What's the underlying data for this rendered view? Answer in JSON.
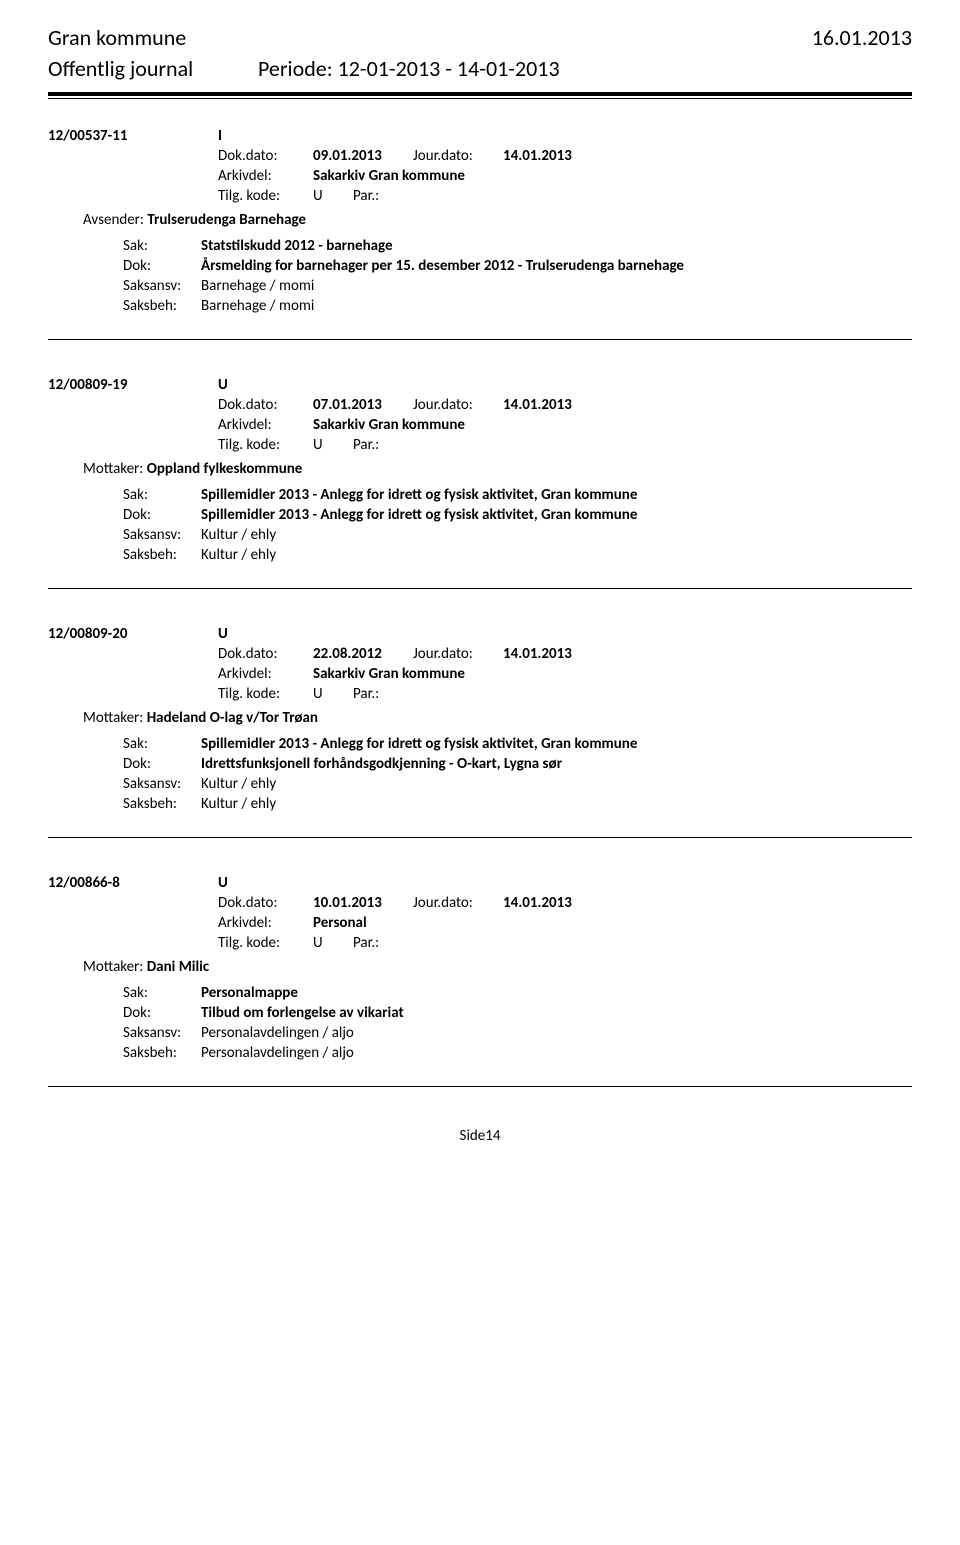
{
  "header": {
    "org": "Gran kommune",
    "date": "16.01.2013",
    "journal_label": "Offentlig journal",
    "period_label": "Periode:",
    "period_value": "12-01-2013 - 14-01-2013"
  },
  "labels": {
    "dokdato": "Dok.dato:",
    "jourdato": "Jour.dato:",
    "arkivdel": "Arkivdel:",
    "tilgkode": "Tilg. kode:",
    "par": "Par.:",
    "avsender": "Avsender:",
    "mottaker": "Mottaker:",
    "sak": "Sak:",
    "dok": "Dok:",
    "saksansv": "Saksansv:",
    "saksbeh": "Saksbeh:"
  },
  "entries": [
    {
      "id": "12/00537-11",
      "type": "I",
      "dokdato": "09.01.2013",
      "jourdato": "14.01.2013",
      "arkivdel": "Sakarkiv Gran kommune",
      "tilgkode": "U",
      "party_label": "Avsender:",
      "party": "Trulserudenga Barnehage",
      "sak": "Statstilskudd 2012 - barnehage",
      "dok": "Årsmelding for barnehager per 15. desember 2012 - Trulserudenga barnehage",
      "saksansv": "Barnehage / momi",
      "saksbeh": "Barnehage / momi"
    },
    {
      "id": "12/00809-19",
      "type": "U",
      "dokdato": "07.01.2013",
      "jourdato": "14.01.2013",
      "arkivdel": "Sakarkiv Gran kommune",
      "tilgkode": "U",
      "party_label": "Mottaker:",
      "party": "Oppland fylkeskommune",
      "sak": "Spillemidler 2013 - Anlegg for idrett og fysisk aktivitet, Gran kommune",
      "dok": "Spillemidler 2013 - Anlegg for idrett og fysisk aktivitet, Gran kommune",
      "saksansv": "Kultur / ehly",
      "saksbeh": "Kultur / ehly"
    },
    {
      "id": "12/00809-20",
      "type": "U",
      "dokdato": "22.08.2012",
      "jourdato": "14.01.2013",
      "arkivdel": "Sakarkiv Gran kommune",
      "tilgkode": "U",
      "party_label": "Mottaker:",
      "party": "Hadeland O-lag v/Tor Trøan",
      "sak": "Spillemidler 2013 - Anlegg for idrett og fysisk aktivitet, Gran kommune",
      "dok": "Idrettsfunksjonell forhåndsgodkjenning - O-kart, Lygna sør",
      "saksansv": "Kultur / ehly",
      "saksbeh": "Kultur / ehly"
    },
    {
      "id": "12/00866-8",
      "type": "U",
      "dokdato": "10.01.2013",
      "jourdato": "14.01.2013",
      "arkivdel": "Personal",
      "tilgkode": "U",
      "party_label": "Mottaker:",
      "party": "Dani Milic",
      "sak": "Personalmappe",
      "dok": "Tilbud om forlengelse av vikariat",
      "saksansv": "Personalavdelingen / aljo",
      "saksbeh": "Personalavdelingen / aljo"
    }
  ],
  "footer": {
    "page": "Side14"
  }
}
